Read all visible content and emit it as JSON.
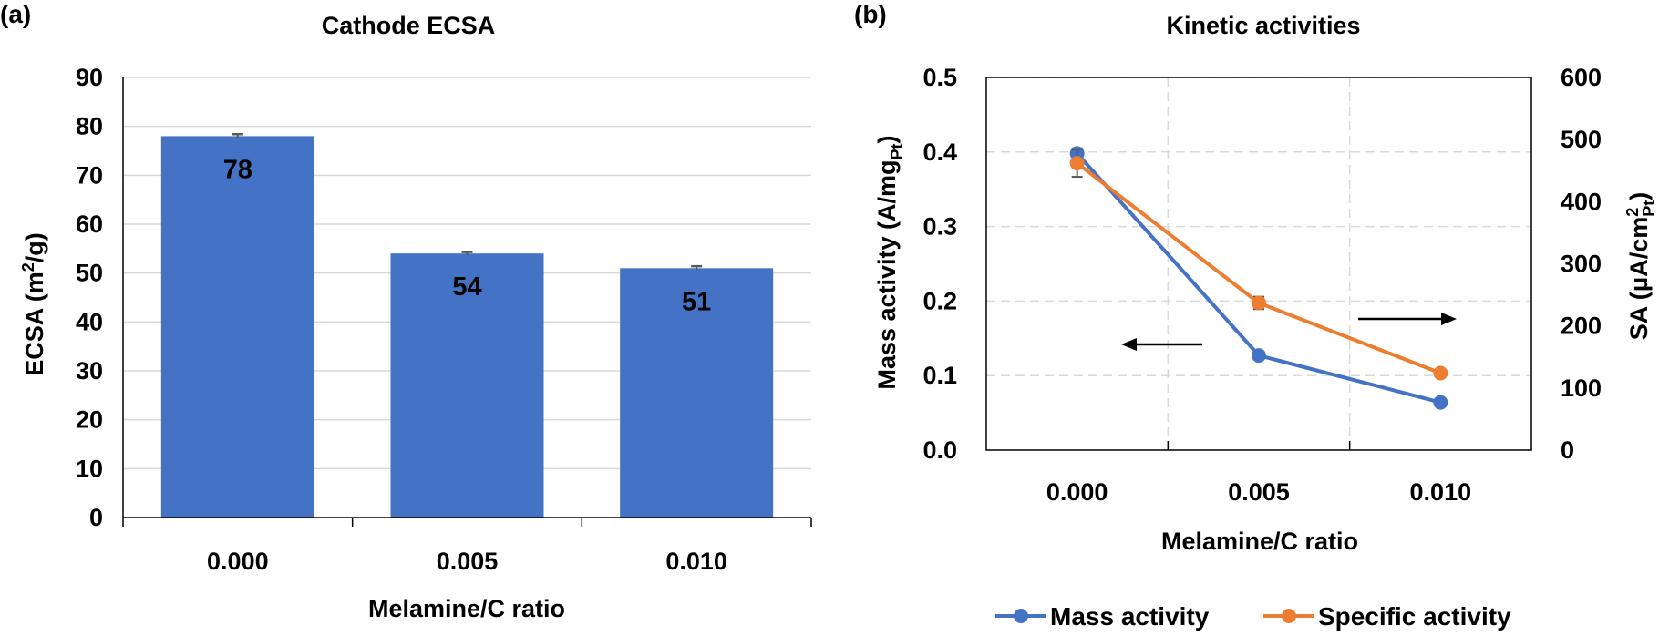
{
  "chart_data": [
    {
      "panel_label": "(a)",
      "type": "bar",
      "title": "Cathode ECSA",
      "categories": [
        "0.000",
        "0.005",
        "0.010"
      ],
      "values": [
        78,
        54,
        51
      ],
      "data_labels": [
        "78",
        "54",
        "51"
      ],
      "error": [
        0.4,
        0.3,
        0.4
      ],
      "xlabel": "Melamine/C ratio",
      "ylabel_main": "ECSA (m",
      "ylabel_sup": "2",
      "ylabel_end": "/g)",
      "ylim": [
        0,
        90
      ],
      "yticks": [
        "0",
        "10",
        "20",
        "30",
        "40",
        "50",
        "60",
        "70",
        "80",
        "90"
      ],
      "grid": "horizontal",
      "colors": {
        "bar": "#4472C4",
        "grid": "#d9d9d9",
        "error": "#595959"
      }
    },
    {
      "panel_label": "(b)",
      "type": "line",
      "title": "Kinetic activities",
      "categories": [
        "0.000",
        "0.005",
        "0.010"
      ],
      "xlabel": "Melamine/C ratio",
      "ylabel_left_main": "Mass activity (A/mg",
      "ylabel_left_sub": "Pt",
      "ylabel_left_end": ")",
      "ylabel_right_main": "SA (μA/cm",
      "ylabel_right_sup": "2",
      "ylabel_right_sub": "Pt",
      "ylabel_right_end": ")",
      "ylim_left": [
        0,
        0.5
      ],
      "yticks_left": [
        "0.0",
        "0.1",
        "0.2",
        "0.3",
        "0.4",
        "0.5"
      ],
      "ylim_right": [
        0,
        600
      ],
      "yticks_right": [
        "0",
        "100",
        "200",
        "300",
        "400",
        "500",
        "600"
      ],
      "grid": "dashed",
      "legend_position": "bottom",
      "series": [
        {
          "name": "Mass activity",
          "axis": "left",
          "values": [
            0.398,
            0.127,
            0.064
          ],
          "error": [
            0.007,
            0.003,
            0.002
          ],
          "color": "#4472C4"
        },
        {
          "name": "Specific activity",
          "axis": "right",
          "values": [
            462,
            237,
            124
          ],
          "error": [
            22,
            10,
            3
          ],
          "color": "#ED7D31"
        }
      ],
      "annotations": [
        "arrow pointing left toward Mass activity axis",
        "arrow pointing right toward SA axis"
      ]
    }
  ]
}
